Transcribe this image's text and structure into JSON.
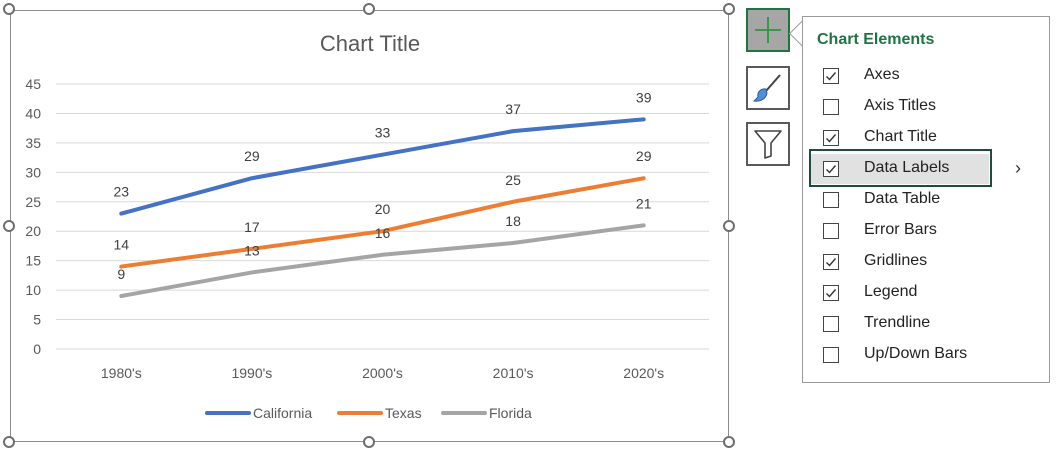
{
  "chart_data": {
    "type": "line",
    "title": "Chart Title",
    "categories": [
      "1980's",
      "1990's",
      "2000's",
      "2010's",
      "2020's"
    ],
    "series": [
      {
        "name": "California",
        "color": "#4472C4",
        "values": [
          23,
          29,
          33,
          37,
          39
        ]
      },
      {
        "name": "Texas",
        "color": "#ED7D31",
        "values": [
          14,
          17,
          20,
          25,
          29
        ]
      },
      {
        "name": "Florida",
        "color": "#A5A5A5",
        "values": [
          9,
          13,
          16,
          18,
          21
        ]
      }
    ],
    "ylim": [
      0,
      45
    ],
    "yticks": [
      0,
      5,
      10,
      15,
      20,
      25,
      30,
      35,
      40,
      45
    ],
    "grid": true,
    "legend": "bottom",
    "data_labels": true
  },
  "sidebar": {
    "elements_icon": "plus-icon",
    "styles_icon": "paintbrush-icon",
    "filters_icon": "funnel-icon"
  },
  "panel": {
    "title": "Chart Elements",
    "options": [
      {
        "label": "Axes",
        "checked": true
      },
      {
        "label": "Axis Titles",
        "checked": false
      },
      {
        "label": "Chart Title",
        "checked": true
      },
      {
        "label": "Data Labels",
        "checked": true
      },
      {
        "label": "Data Table",
        "checked": false
      },
      {
        "label": "Error Bars",
        "checked": false
      },
      {
        "label": "Gridlines",
        "checked": true
      },
      {
        "label": "Legend",
        "checked": true
      },
      {
        "label": "Trendline",
        "checked": false
      },
      {
        "label": "Up/Down Bars",
        "checked": false
      }
    ],
    "chevron": "›"
  }
}
